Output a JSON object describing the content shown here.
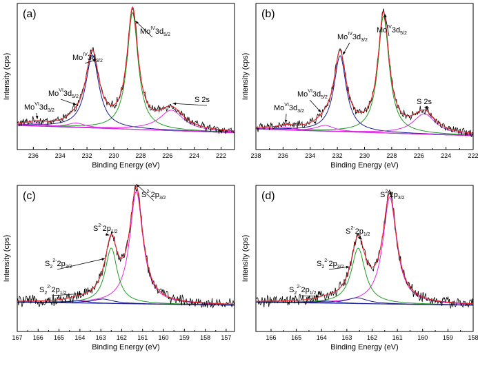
{
  "colors": {
    "raw": "#000000",
    "fit_envelope": "#e8232a",
    "background": "#2a35b8",
    "green": "#1f9a1f",
    "magenta": "#e028e0",
    "navy": "#1a1a8a"
  },
  "chart_data": [
    {
      "type": "line",
      "panel_label": "(a)",
      "xlabel": "Binding Energy (eV)",
      "ylabel": "Intensity (cps)",
      "xlim": [
        237.2,
        221.0
      ],
      "x_ticks": [
        236,
        234,
        232,
        230,
        228,
        226,
        224,
        222
      ],
      "ylim": [
        0,
        1
      ],
      "baseline": [
        0.165,
        0.115
      ],
      "components": [
        {
          "name": "Mo IV 3d5/2",
          "center": 228.6,
          "amp": 0.8,
          "width": 0.5,
          "color": "green"
        },
        {
          "name": "Mo IV 3d3/2",
          "center": 231.6,
          "amp": 0.5,
          "width": 0.6,
          "color": "navy"
        },
        {
          "name": "Mo VI 3d5/2",
          "center": 232.8,
          "amp": 0.03,
          "width": 0.8,
          "color": "magenta"
        },
        {
          "name": "Mo VI 3d3/2",
          "center": 235.8,
          "amp": 0.02,
          "width": 0.8,
          "color": "magenta"
        },
        {
          "name": "S 2s",
          "center": 225.7,
          "amp": 0.14,
          "width": 1.1,
          "color": "magenta"
        }
      ],
      "annotations": [
        {
          "main": "Mo",
          "sup": "IV",
          "tail": "3d",
          "sub": "5/2"
        },
        {
          "main": "Mo",
          "sup": "IV",
          "tail": "3d",
          "sub": "3/2"
        },
        {
          "main": "Mo",
          "sup": "VI",
          "tail": "3d",
          "sub": "5/2"
        },
        {
          "main": "Mo",
          "sup": "VI",
          "tail": "3d",
          "sub": "3/2"
        },
        {
          "main": "S 2s",
          "sup": "",
          "tail": "",
          "sub": ""
        }
      ]
    },
    {
      "type": "line",
      "panel_label": "(b)",
      "xlabel": "Binding Energy (eV)",
      "ylabel": "Intensity (cps)",
      "xlim": [
        238.0,
        222.0
      ],
      "x_ticks": [
        238,
        236,
        234,
        232,
        230,
        228,
        226,
        224,
        222
      ],
      "ylim": [
        0,
        1
      ],
      "baseline": [
        0.14,
        0.095
      ],
      "components": [
        {
          "name": "Mo IV 3d5/2",
          "center": 228.6,
          "amp": 0.8,
          "width": 0.5,
          "color": "green"
        },
        {
          "name": "Mo IV 3d3/2",
          "center": 231.8,
          "amp": 0.52,
          "width": 0.55,
          "color": "navy"
        },
        {
          "name": "Mo VI 3d5/2",
          "center": 232.9,
          "amp": 0.04,
          "width": 0.8,
          "color": "magenta"
        },
        {
          "name": "Mo VI 3d3/2",
          "center": 235.8,
          "amp": 0.02,
          "width": 0.8,
          "color": "magenta"
        },
        {
          "name": "S 2s",
          "center": 225.6,
          "amp": 0.14,
          "width": 1.0,
          "color": "magenta"
        }
      ],
      "annotations": [
        {
          "main": "Mo",
          "sup": "IV",
          "tail": "3d",
          "sub": "5/2"
        },
        {
          "main": "Mo",
          "sup": "IV",
          "tail": "3d",
          "sub": "3/2"
        },
        {
          "main": "Mo",
          "sup": "VI",
          "tail": "3d",
          "sub": "5/2"
        },
        {
          "main": "Mo",
          "sup": "VI",
          "tail": "3d",
          "sub": "3/2"
        },
        {
          "main": "S 2s",
          "sup": "",
          "tail": "",
          "sub": ""
        }
      ]
    },
    {
      "type": "line",
      "panel_label": "(c)",
      "xlabel": "Binding Energy (eV)",
      "ylabel": "Intensity (cps)",
      "xlim": [
        167.0,
        156.6
      ],
      "x_ticks": [
        167,
        166,
        165,
        164,
        163,
        162,
        161,
        160,
        159,
        158,
        157
      ],
      "ylim": [
        0,
        1
      ],
      "baseline": [
        0.2,
        0.18
      ],
      "components": [
        {
          "name": "S2- 2p3/2",
          "center": 161.3,
          "amp": 0.77,
          "width": 0.38,
          "color": "magenta"
        },
        {
          "name": "S2- 2p1/2",
          "center": 162.5,
          "amp": 0.38,
          "width": 0.35,
          "color": "green"
        },
        {
          "name": "S2 2- 2p3/2",
          "center": 162.9,
          "amp": 0.03,
          "width": 0.6,
          "color": "navy"
        },
        {
          "name": "S2 2- 2p1/2",
          "center": 164.1,
          "amp": 0.015,
          "width": 0.6,
          "color": "navy"
        }
      ],
      "annotations": [
        {
          "main": "S",
          "sup": "2-",
          "tail": "2p",
          "sub": "3/2"
        },
        {
          "main": "S",
          "sup": "2-",
          "tail": "2p",
          "sub": "1/2"
        },
        {
          "main": "S",
          "sup": "2-",
          "tail": "2p",
          "sub": "3/2",
          "pre_sub": "2"
        },
        {
          "main": "S",
          "sup": "2-",
          "tail": "2p",
          "sub": "1/2",
          "pre_sub": "2"
        }
      ]
    },
    {
      "type": "line",
      "panel_label": "(d)",
      "xlabel": "Binding Energy (eV)",
      "ylabel": "Intensity (cps)",
      "xlim": [
        166.6,
        158.0
      ],
      "x_ticks": [
        166,
        165,
        164,
        163,
        162,
        161,
        160,
        159,
        158
      ],
      "ylim": [
        0,
        1
      ],
      "baseline": [
        0.2,
        0.18
      ],
      "components": [
        {
          "name": "S2- 2p3/2",
          "center": 161.3,
          "amp": 0.73,
          "width": 0.33,
          "color": "magenta"
        },
        {
          "name": "S2- 2p1/2",
          "center": 162.55,
          "amp": 0.38,
          "width": 0.33,
          "color": "green"
        },
        {
          "name": "S2 2- 2p3/2",
          "center": 162.6,
          "amp": 0.04,
          "width": 0.5,
          "color": "navy"
        },
        {
          "name": "S2 2- 2p1/2",
          "center": 163.8,
          "amp": 0.015,
          "width": 0.5,
          "color": "navy"
        }
      ],
      "annotations": [
        {
          "main": "S",
          "sup": "2-",
          "tail": "2p",
          "sub": "3/2"
        },
        {
          "main": "S",
          "sup": "2-",
          "tail": "2p",
          "sub": "1/2"
        },
        {
          "main": "S",
          "sup": "2-",
          "tail": "2p",
          "sub": "3/2",
          "pre_sub": "2"
        },
        {
          "main": "S",
          "sup": "2-",
          "tail": "2p",
          "sub": "1/2",
          "pre_sub": "2"
        }
      ]
    }
  ]
}
